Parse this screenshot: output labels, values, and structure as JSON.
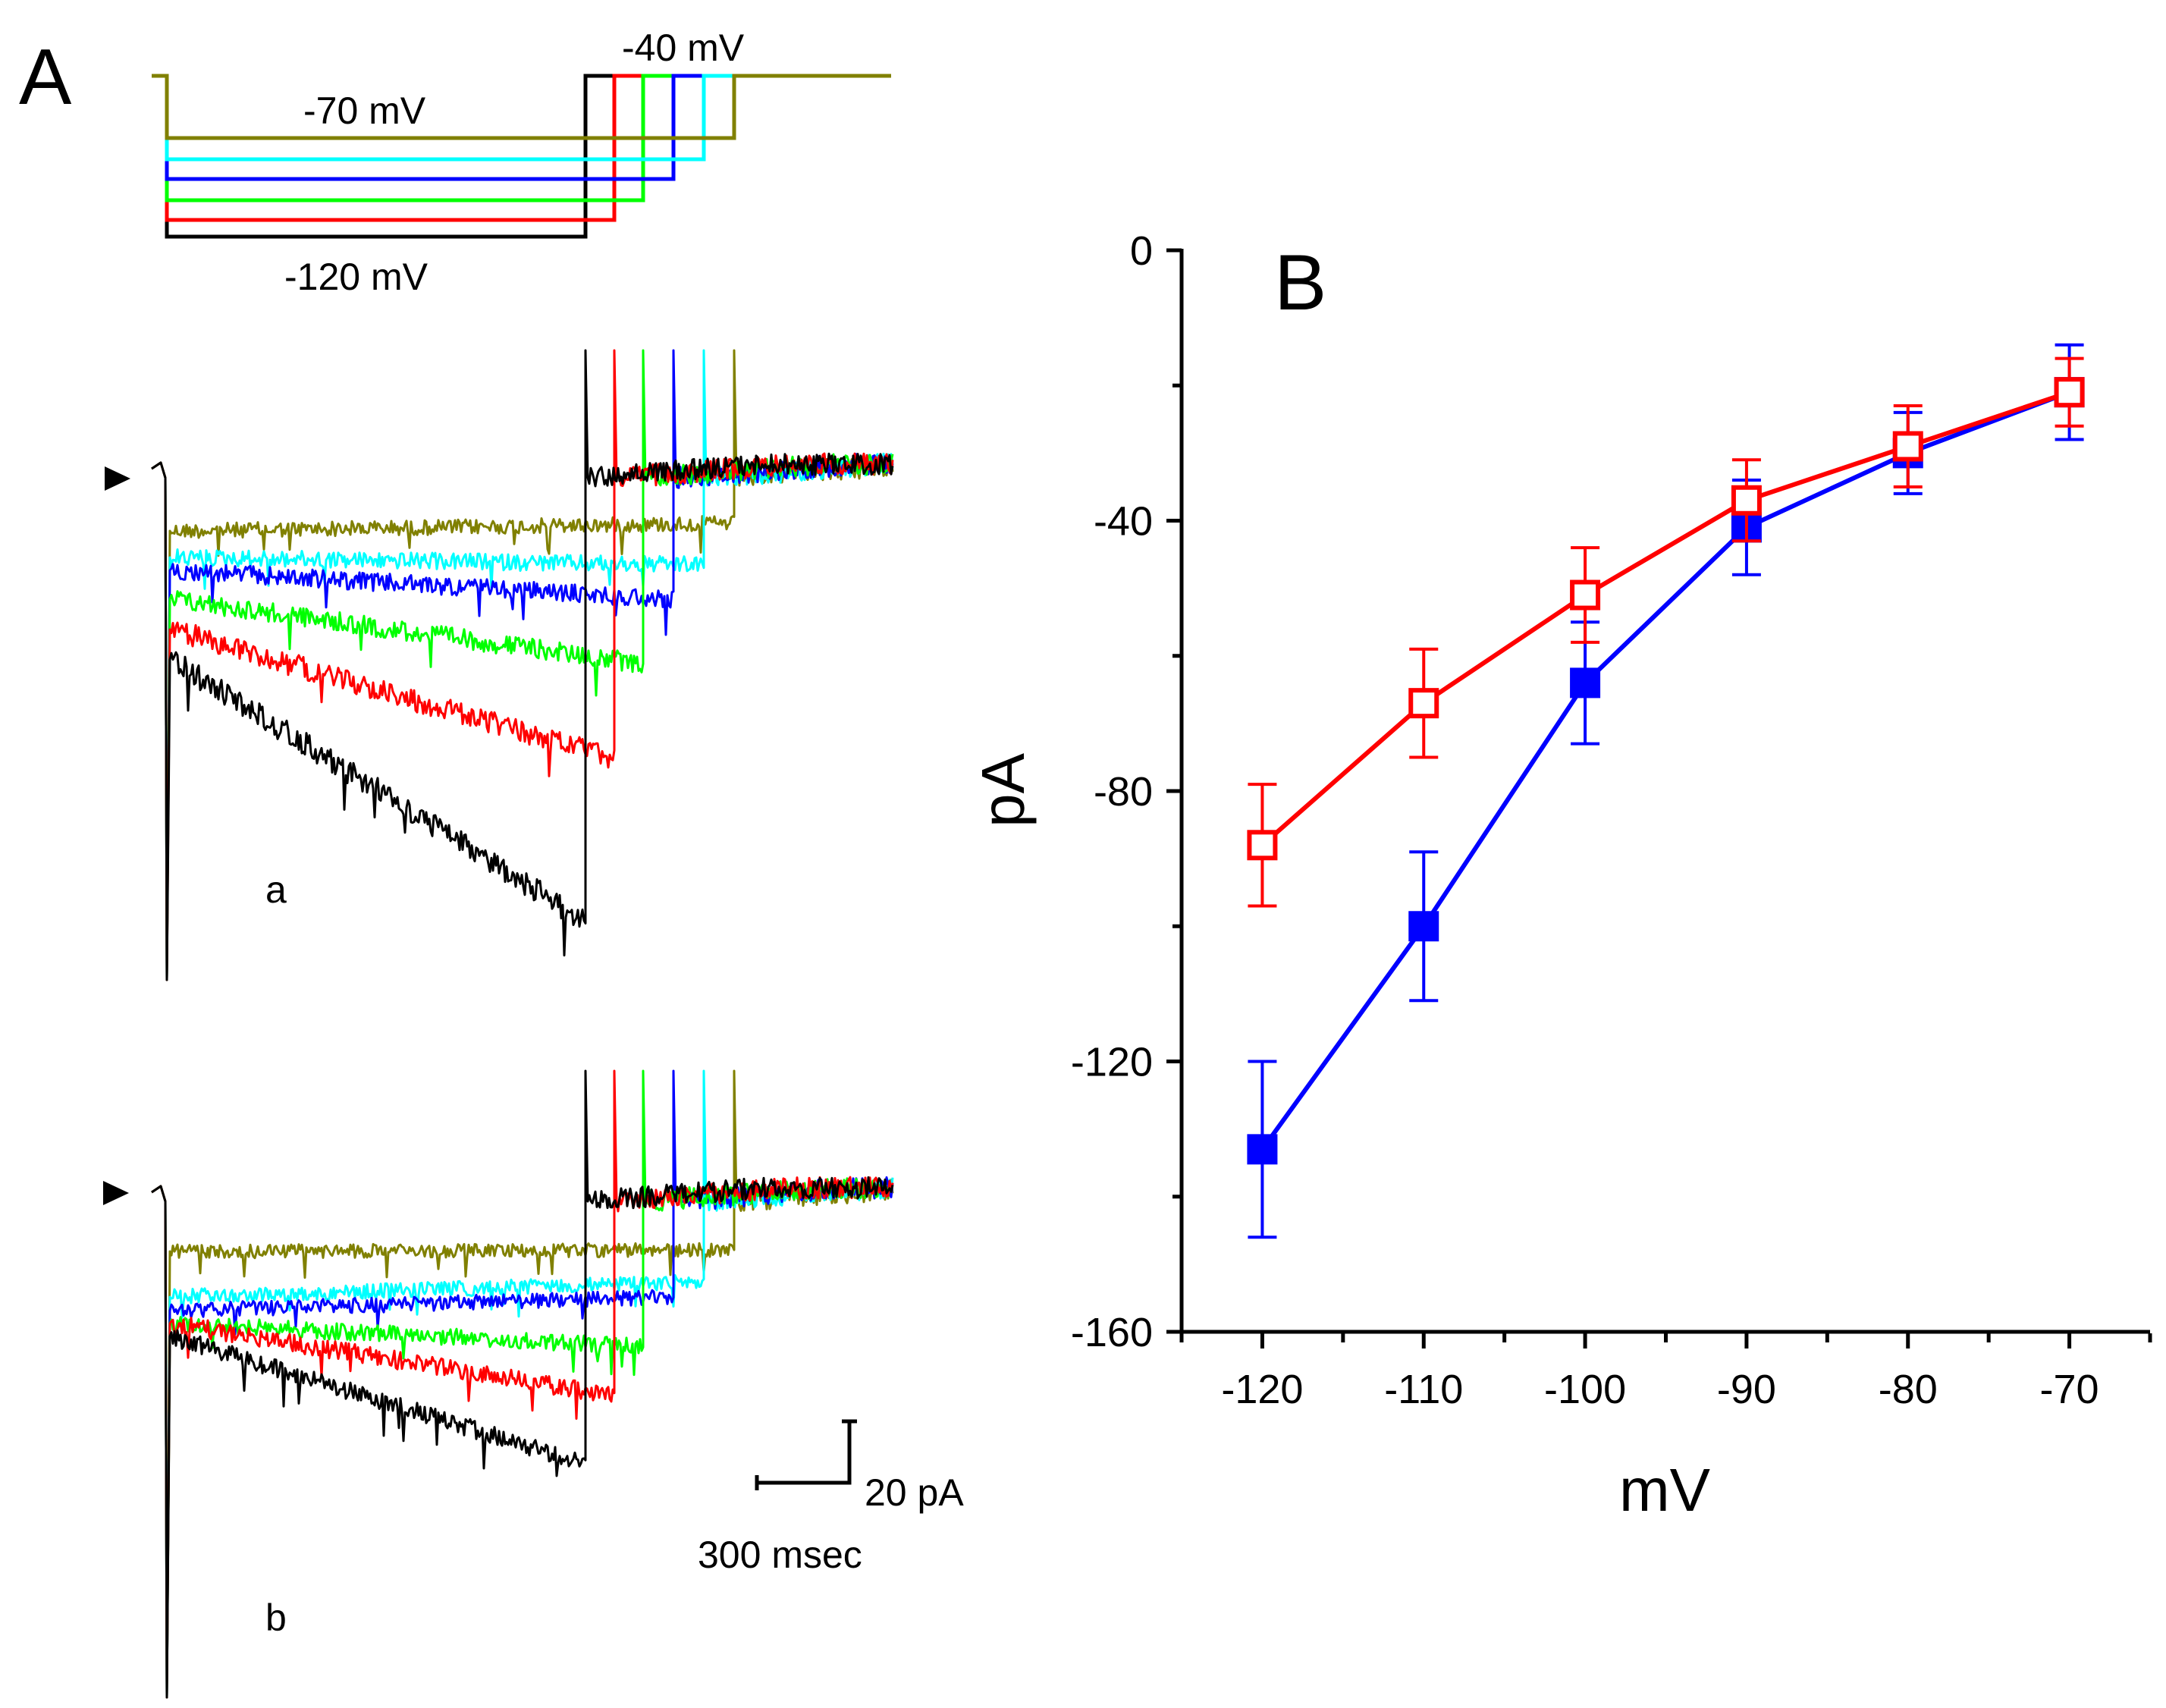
{
  "panel_a": {
    "label": "A",
    "protocol": {
      "label_hold": "-40 mV",
      "label_top_step": "-70 mV",
      "label_bottom_step": "-120 mV"
    },
    "trace_a_label": "a",
    "trace_b_label": "b",
    "scale_bar": {
      "current": "20 pA",
      "time": "300 msec"
    }
  },
  "chart_data": {
    "type": "line",
    "panel_label": "B",
    "xlabel": "mV",
    "ylabel": "pA",
    "xlim": [
      -125,
      -65
    ],
    "ylim": [
      -160,
      0
    ],
    "x": [
      -120,
      -110,
      -100,
      -90,
      -80,
      -70
    ],
    "x_tick_labels": [
      "-120",
      "-110",
      "-100",
      "-90",
      "-80",
      "-70"
    ],
    "y_ticks": [
      0,
      -40,
      -80,
      -120,
      -160
    ],
    "y_tick_labels": [
      "0",
      "-40",
      "-80",
      "-120",
      "-160"
    ],
    "series": [
      {
        "name": "blue filled squares",
        "color": "#0000ff",
        "marker": "filled-square",
        "values": [
          -133,
          -100,
          -64,
          -41,
          -30,
          -21
        ],
        "errors": [
          13,
          11,
          9,
          7,
          6,
          7
        ]
      },
      {
        "name": "red open squares",
        "color": "#ff0000",
        "marker": "open-square",
        "values": [
          -88,
          -67,
          -51,
          -37,
          -29,
          -21
        ],
        "errors": [
          9,
          8,
          7,
          6,
          6,
          5
        ]
      }
    ]
  },
  "colors": {
    "black": "#000000",
    "red": "#ff0000",
    "green": "#00ff00",
    "blue": "#0000ff",
    "cyan": "#00ffff",
    "olive": "#808000"
  }
}
